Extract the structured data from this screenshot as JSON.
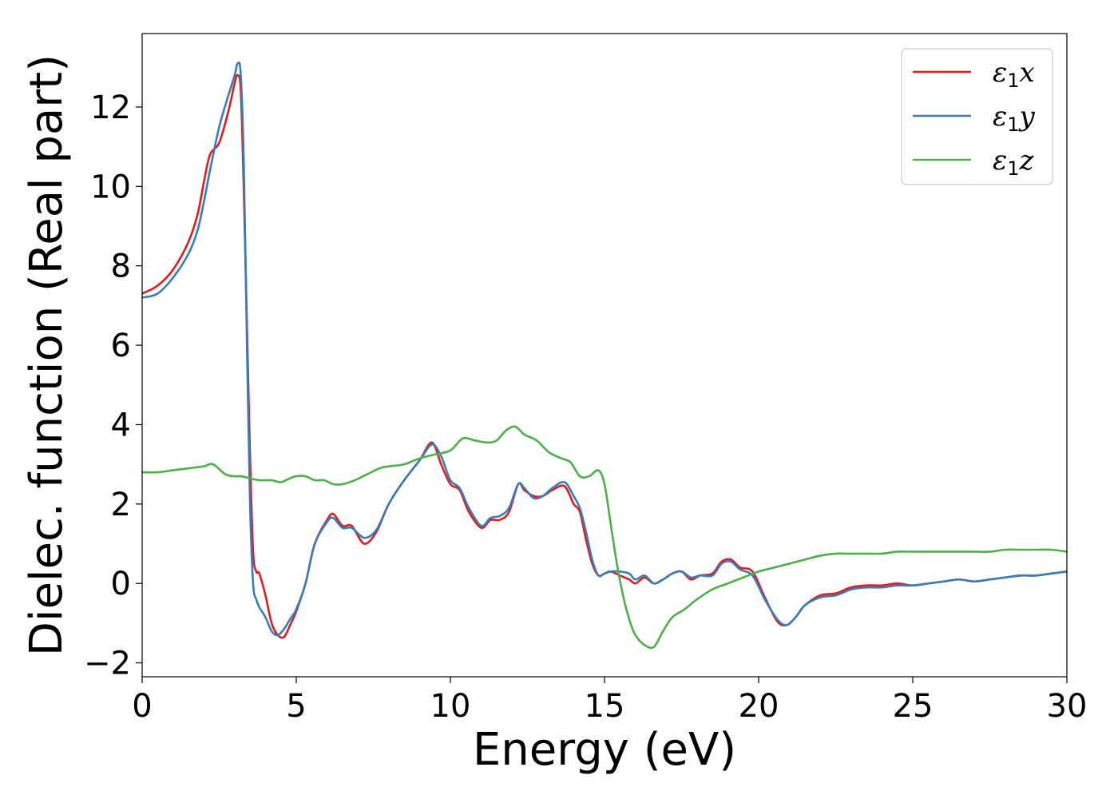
{
  "chart_data": {
    "type": "line",
    "title": "",
    "xlabel": "Energy (eV)",
    "ylabel": "Dielec. function (Real part)",
    "xlim": [
      0,
      30
    ],
    "ylim": [
      -2.35,
      13.85
    ],
    "xticks": [
      0,
      5,
      10,
      15,
      20,
      25,
      30
    ],
    "xtick_labels": [
      "0",
      "5",
      "10",
      "15",
      "20",
      "25",
      "30"
    ],
    "yticks": [
      -2,
      0,
      2,
      4,
      6,
      8,
      10,
      12
    ],
    "ytick_labels": [
      "−2",
      "0",
      "2",
      "4",
      "6",
      "8",
      "10",
      "12"
    ],
    "grid": false,
    "legend_position": "top-right",
    "series": [
      {
        "name": "ε₁x",
        "legend_base": "ε",
        "legend_sub": "1",
        "legend_tail": "x",
        "color": "#e41a1c",
        "x": [
          0,
          0.5,
          1.0,
          1.5,
          1.8,
          2.0,
          2.2,
          2.5,
          2.8,
          3.0,
          3.1,
          3.2,
          3.3,
          3.4,
          3.5,
          3.6,
          3.7,
          3.8,
          4.0,
          4.2,
          4.4,
          4.6,
          4.8,
          5.0,
          5.3,
          5.6,
          6.0,
          6.2,
          6.5,
          6.8,
          7.2,
          7.6,
          8.0,
          8.5,
          9.0,
          9.4,
          9.7,
          10.0,
          10.3,
          10.6,
          11.0,
          11.3,
          11.6,
          11.9,
          12.2,
          12.4,
          12.7,
          13.0,
          13.3,
          13.7,
          14.0,
          14.2,
          14.4,
          14.6,
          14.8,
          15.0,
          15.2,
          15.5,
          15.8,
          16.0,
          16.3,
          16.6,
          16.9,
          17.2,
          17.5,
          17.8,
          18.1,
          18.5,
          18.8,
          19.1,
          19.4,
          19.8,
          20.2,
          20.6,
          20.9,
          21.2,
          21.5,
          22.0,
          22.5,
          23.0,
          23.5,
          24.0,
          24.5,
          25.0,
          25.5,
          26.0,
          26.5,
          27.0,
          27.5,
          28.0,
          28.5,
          29.0,
          29.5,
          30.0
        ],
        "y": [
          7.3,
          7.5,
          7.9,
          8.6,
          9.3,
          10.1,
          10.8,
          11.1,
          11.9,
          12.6,
          12.8,
          12.4,
          9.8,
          6.5,
          3.2,
          0.8,
          0.3,
          0.25,
          -0.3,
          -1.0,
          -1.3,
          -1.35,
          -1.05,
          -0.7,
          0.0,
          1.0,
          1.6,
          1.75,
          1.45,
          1.45,
          1.0,
          1.3,
          2.0,
          2.6,
          3.1,
          3.55,
          3.0,
          2.5,
          2.35,
          1.8,
          1.4,
          1.6,
          1.6,
          1.8,
          2.5,
          2.35,
          2.2,
          2.2,
          2.35,
          2.45,
          2.0,
          1.8,
          1.1,
          0.5,
          0.2,
          0.25,
          0.3,
          0.2,
          0.1,
          0.0,
          0.15,
          0.0,
          0.1,
          0.25,
          0.3,
          0.1,
          0.2,
          0.25,
          0.55,
          0.6,
          0.4,
          0.3,
          -0.35,
          -0.95,
          -1.05,
          -0.85,
          -0.55,
          -0.3,
          -0.25,
          -0.1,
          -0.05,
          -0.05,
          0.0,
          -0.05,
          0.0,
          0.05,
          0.1,
          0.05,
          0.1,
          0.15,
          0.2,
          0.2,
          0.25,
          0.3
        ]
      },
      {
        "name": "ε₁y",
        "legend_base": "ε",
        "legend_sub": "1",
        "legend_tail": "y",
        "color": "#377eb8",
        "x": [
          0,
          0.5,
          1.0,
          1.5,
          1.8,
          2.0,
          2.2,
          2.5,
          2.8,
          3.0,
          3.1,
          3.2,
          3.3,
          3.4,
          3.5,
          3.6,
          3.7,
          3.8,
          4.0,
          4.2,
          4.4,
          4.6,
          4.8,
          5.0,
          5.3,
          5.6,
          6.0,
          6.2,
          6.5,
          6.8,
          7.2,
          7.6,
          8.0,
          8.5,
          9.0,
          9.4,
          9.7,
          10.0,
          10.3,
          10.6,
          11.0,
          11.3,
          11.6,
          11.9,
          12.2,
          12.4,
          12.7,
          13.0,
          13.3,
          13.7,
          14.0,
          14.2,
          14.4,
          14.6,
          14.8,
          15.0,
          15.2,
          15.5,
          15.8,
          16.0,
          16.3,
          16.6,
          16.9,
          17.2,
          17.5,
          17.8,
          18.1,
          18.5,
          18.8,
          19.1,
          19.4,
          19.8,
          20.2,
          20.6,
          20.9,
          21.2,
          21.5,
          22.0,
          22.5,
          23.0,
          23.5,
          24.0,
          24.5,
          25.0,
          25.5,
          26.0,
          26.5,
          27.0,
          27.5,
          28.0,
          28.5,
          29.0,
          29.5,
          30.0
        ],
        "y": [
          7.2,
          7.3,
          7.7,
          8.3,
          8.9,
          9.6,
          10.4,
          11.5,
          12.3,
          12.8,
          13.1,
          12.8,
          10.5,
          6.0,
          2.0,
          0.0,
          -0.4,
          -0.6,
          -0.85,
          -1.2,
          -1.3,
          -1.15,
          -0.9,
          -0.65,
          0.0,
          1.0,
          1.55,
          1.65,
          1.4,
          1.4,
          1.15,
          1.35,
          2.0,
          2.6,
          3.1,
          3.5,
          3.2,
          2.6,
          2.4,
          1.9,
          1.45,
          1.65,
          1.7,
          1.9,
          2.5,
          2.4,
          2.15,
          2.2,
          2.4,
          2.55,
          2.2,
          1.9,
          1.3,
          0.6,
          0.2,
          0.25,
          0.3,
          0.3,
          0.25,
          0.1,
          0.2,
          0.0,
          0.1,
          0.25,
          0.3,
          0.15,
          0.2,
          0.2,
          0.5,
          0.55,
          0.35,
          0.2,
          -0.4,
          -0.9,
          -1.05,
          -0.85,
          -0.55,
          -0.35,
          -0.3,
          -0.15,
          -0.1,
          -0.1,
          -0.05,
          -0.05,
          0.0,
          0.05,
          0.1,
          0.05,
          0.1,
          0.15,
          0.2,
          0.2,
          0.25,
          0.3
        ]
      },
      {
        "name": "ε₁z",
        "legend_base": "ε",
        "legend_sub": "1",
        "legend_tail": "z",
        "color": "#4daf4a",
        "x": [
          0,
          0.5,
          1.0,
          1.5,
          2.0,
          2.3,
          2.7,
          3.0,
          3.2,
          3.5,
          3.8,
          4.2,
          4.5,
          4.8,
          5.0,
          5.3,
          5.6,
          5.9,
          6.2,
          6.5,
          6.9,
          7.3,
          7.7,
          8.0,
          8.5,
          9.0,
          9.5,
          10.0,
          10.4,
          10.8,
          11.2,
          11.5,
          11.8,
          12.1,
          12.4,
          12.8,
          13.2,
          13.6,
          13.9,
          14.2,
          14.5,
          14.8,
          15.0,
          15.2,
          15.4,
          15.6,
          15.8,
          16.0,
          16.3,
          16.6,
          16.9,
          17.2,
          17.6,
          18.0,
          18.5,
          19.0,
          19.5,
          20.0,
          20.5,
          21.0,
          21.5,
          22.0,
          22.5,
          23.0,
          23.5,
          24.0,
          24.5,
          25.0,
          25.5,
          26.0,
          26.5,
          27.0,
          27.5,
          28.0,
          28.5,
          29.0,
          29.5,
          30.0
        ],
        "y": [
          2.8,
          2.8,
          2.85,
          2.9,
          2.95,
          3.0,
          2.75,
          2.7,
          2.7,
          2.65,
          2.6,
          2.6,
          2.55,
          2.65,
          2.7,
          2.7,
          2.6,
          2.6,
          2.5,
          2.5,
          2.6,
          2.75,
          2.9,
          2.95,
          3.0,
          3.15,
          3.25,
          3.35,
          3.65,
          3.6,
          3.55,
          3.6,
          3.85,
          3.95,
          3.75,
          3.6,
          3.3,
          3.15,
          3.05,
          2.7,
          2.7,
          2.85,
          2.5,
          1.5,
          0.5,
          -0.3,
          -0.9,
          -1.3,
          -1.55,
          -1.6,
          -1.2,
          -0.85,
          -0.65,
          -0.4,
          -0.15,
          0.0,
          0.15,
          0.3,
          0.4,
          0.5,
          0.6,
          0.7,
          0.75,
          0.75,
          0.75,
          0.75,
          0.8,
          0.8,
          0.8,
          0.8,
          0.8,
          0.8,
          0.8,
          0.85,
          0.85,
          0.85,
          0.85,
          0.8
        ]
      }
    ]
  }
}
